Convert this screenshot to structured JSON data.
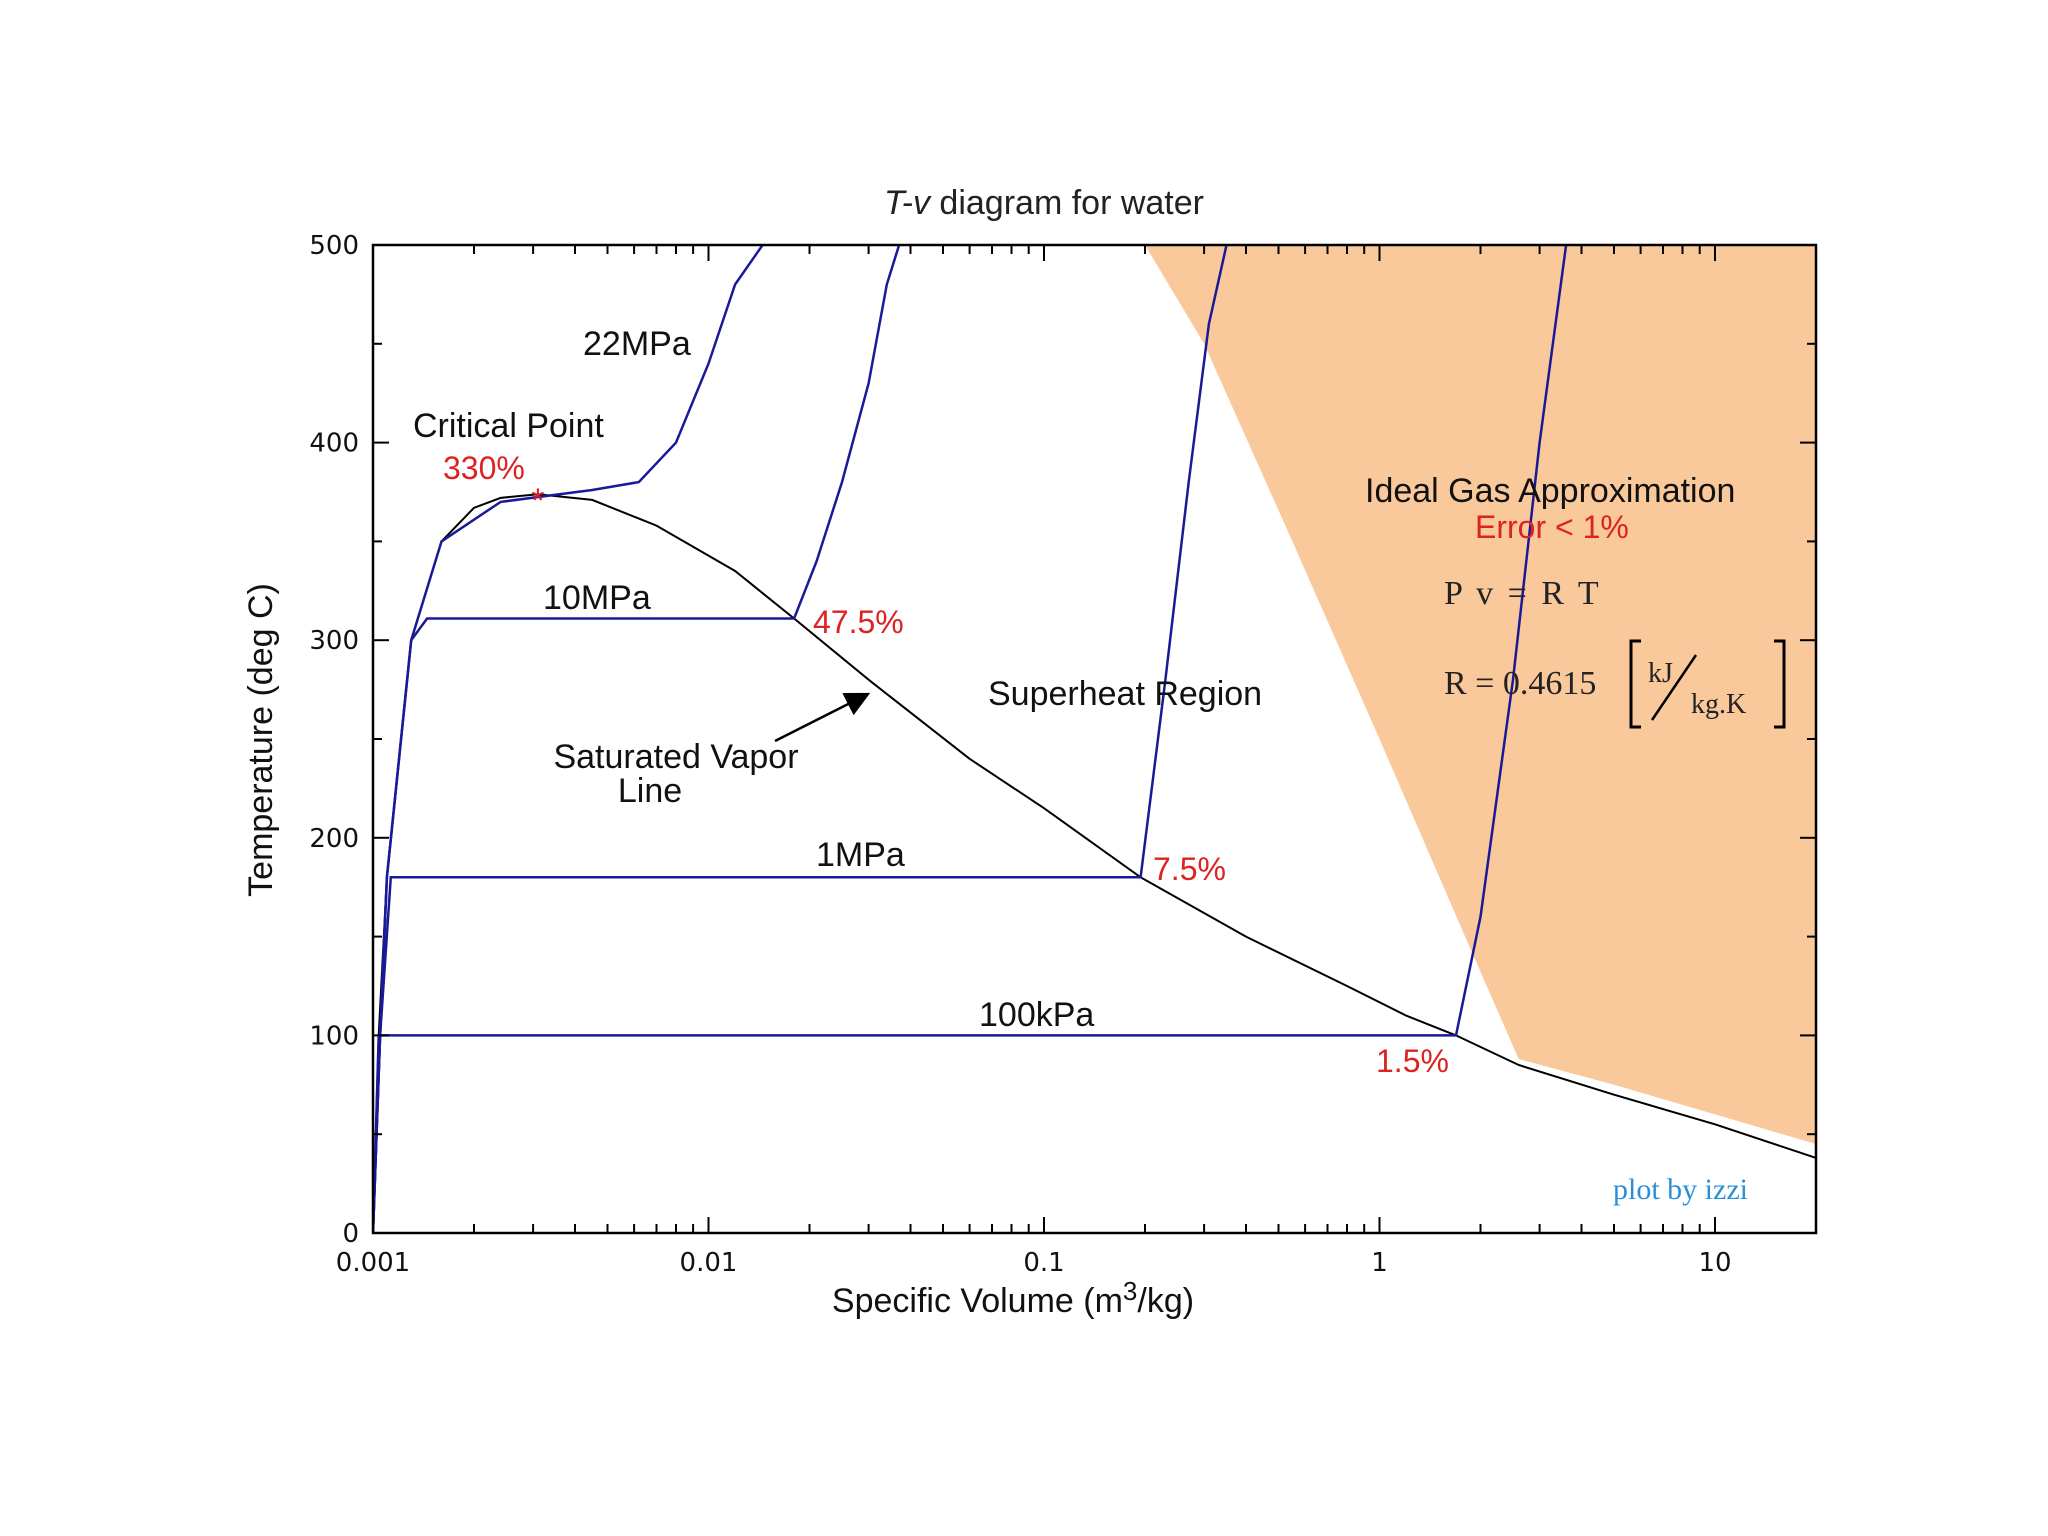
{
  "colors": {
    "isobar": "#1a1a99",
    "sat_curve": "#000000",
    "ideal_region": "#f9c99c",
    "error_text": "#dd2222",
    "credit": "#2a8fd6"
  },
  "chart_data": {
    "type": "line",
    "title_italic": "T-v",
    "title_rest": " diagram for water",
    "xlabel_main": "Specific Volume (m",
    "xlabel_sup": "3",
    "xlabel_end": "/kg)",
    "ylabel": "Temperature (deg C)",
    "xscale": "log",
    "xlim": [
      0.001,
      20
    ],
    "ylim": [
      0,
      500
    ],
    "x_ticks": [
      {
        "value": 0.001,
        "label": "0.001"
      },
      {
        "value": 0.01,
        "label": "0.01"
      },
      {
        "value": 0.1,
        "label": "0.1"
      },
      {
        "value": 1,
        "label": "1"
      },
      {
        "value": 10,
        "label": "10"
      }
    ],
    "y_ticks": [
      {
        "value": 0,
        "label": "0"
      },
      {
        "value": 100,
        "label": "100"
      },
      {
        "value": 200,
        "label": "200"
      },
      {
        "value": 300,
        "label": "300"
      },
      {
        "value": 400,
        "label": "400"
      },
      {
        "value": 500,
        "label": "500"
      }
    ],
    "saturation_dome": {
      "name": "saturation",
      "x": [
        0.001,
        0.00104,
        0.0011,
        0.0013,
        0.0016,
        0.002,
        0.0024,
        0.0031,
        0.0045,
        0.007,
        0.012,
        0.018,
        0.03,
        0.06,
        0.1,
        0.194,
        0.4,
        0.8,
        1.2,
        1.69,
        2.6,
        5,
        10,
        20
      ],
      "y": [
        0,
        100,
        180,
        300,
        350,
        367,
        372,
        373.9,
        371,
        358,
        335,
        311,
        280,
        240,
        215,
        180,
        150,
        125,
        110,
        100,
        85,
        70,
        55,
        38
      ]
    },
    "ideal_gas_region": {
      "x": [
        0.2,
        0.3,
        0.55,
        1.0,
        1.8,
        2.6,
        5,
        10,
        20,
        20
      ],
      "y": [
        500,
        450,
        350,
        250,
        150,
        88,
        75,
        60,
        45,
        500
      ]
    },
    "isobars": [
      {
        "name": "22MPa",
        "x": [
          0.001,
          0.00105,
          0.0011,
          0.0013,
          0.0016,
          0.0024,
          0.0045,
          0.0062,
          0.008,
          0.01,
          0.012,
          0.0145
        ],
        "y": [
          0,
          100,
          180,
          300,
          350,
          370,
          376,
          380,
          400,
          440,
          480,
          500
        ]
      },
      {
        "name": "10MPa",
        "x": [
          0.001,
          0.00105,
          0.0011,
          0.0013,
          0.00145,
          0.018,
          0.021,
          0.025,
          0.03,
          0.034,
          0.037
        ],
        "y": [
          0,
          100,
          180,
          300,
          311,
          311,
          340,
          380,
          430,
          480,
          500
        ]
      },
      {
        "name": "1MPa",
        "x": [
          0.001,
          0.00105,
          0.00113,
          0.194,
          0.23,
          0.27,
          0.31,
          0.35
        ],
        "y": [
          0,
          100,
          180,
          180,
          280,
          380,
          460,
          500
        ]
      },
      {
        "name": "100kPa",
        "x": [
          0.001,
          0.00104,
          1.69,
          2.0,
          2.5,
          3.0,
          3.6
        ],
        "y": [
          0,
          100,
          100,
          160,
          280,
          400,
          500
        ]
      }
    ],
    "critical_point": {
      "x": 0.0031,
      "y": 373.9
    },
    "annotations": {
      "critical_point_label": "Critical Point",
      "label_22mpa": "22MPa",
      "label_10mpa": "10MPa",
      "label_1mpa": "1MPa",
      "label_100kpa": "100kPa",
      "err_330": "330%",
      "err_47": "47.5%",
      "err_7": "7.5%",
      "err_1_5": "1.5%",
      "sat_vapor_line_1": "Saturated Vapor",
      "sat_vapor_line_2": "Line",
      "superheat": "Superheat Region",
      "ideal_gas": "Ideal Gas Approximation",
      "error_lt": "Error < 1%",
      "formula_pv": "P v = R T",
      "formula_r": "R = 0.4615",
      "unit_num": "kJ",
      "unit_den": "kg.K",
      "credit": "plot by izzi"
    }
  }
}
